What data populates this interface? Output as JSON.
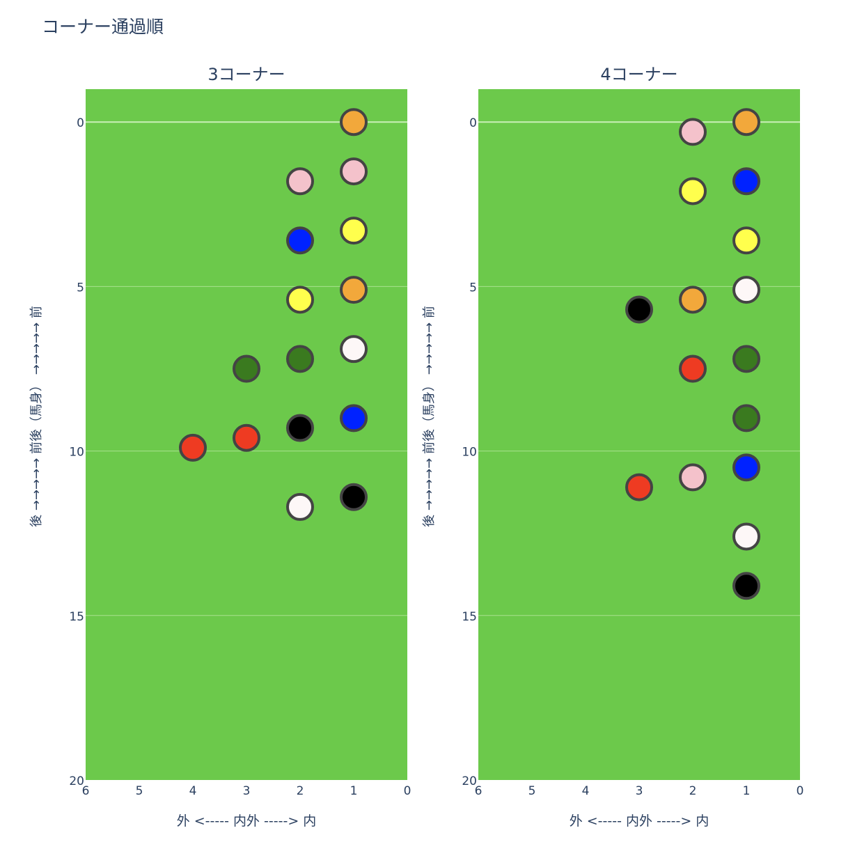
{
  "page_title": "コーナー通過順",
  "chart_data": [
    {
      "type": "scatter",
      "title": "3コーナー",
      "xlabel": "外 <-----  内外  -----> 内",
      "ylabel": "後  →→→→→  前後（馬身）  →→→→→  前",
      "xlim": [
        6,
        0
      ],
      "ylim": [
        20,
        -1
      ],
      "x_ticks": [
        6,
        5,
        4,
        3,
        2,
        1,
        0
      ],
      "y_ticks": [
        0,
        5,
        10,
        15,
        20
      ],
      "points": [
        {
          "x": 1,
          "y": 0.0,
          "color": "#F2A83B"
        },
        {
          "x": 1,
          "y": 1.5,
          "color": "#F4C2CB"
        },
        {
          "x": 2,
          "y": 1.8,
          "color": "#F4C2CB"
        },
        {
          "x": 1,
          "y": 3.3,
          "color": "#FFFF4D"
        },
        {
          "x": 2,
          "y": 3.6,
          "color": "#0022FF"
        },
        {
          "x": 1,
          "y": 5.1,
          "color": "#F2A83B"
        },
        {
          "x": 2,
          "y": 5.4,
          "color": "#FFFF4D"
        },
        {
          "x": 1,
          "y": 6.9,
          "color": "#FDF7F7"
        },
        {
          "x": 2,
          "y": 7.2,
          "color": "#3A7A1F"
        },
        {
          "x": 3,
          "y": 7.5,
          "color": "#3A7A1F"
        },
        {
          "x": 1,
          "y": 9.0,
          "color": "#0022FF"
        },
        {
          "x": 2,
          "y": 9.3,
          "color": "#000000"
        },
        {
          "x": 3,
          "y": 9.6,
          "color": "#EE3B22"
        },
        {
          "x": 4,
          "y": 9.9,
          "color": "#EE3B22"
        },
        {
          "x": 1,
          "y": 11.4,
          "color": "#000000"
        },
        {
          "x": 2,
          "y": 11.7,
          "color": "#FDF7F7"
        }
      ]
    },
    {
      "type": "scatter",
      "title": "4コーナー",
      "xlabel": "外 <-----  内外  -----> 内",
      "ylabel": "後  →→→→→  前後（馬身）  →→→→→  前",
      "xlim": [
        6,
        0
      ],
      "ylim": [
        20,
        -1
      ],
      "x_ticks": [
        6,
        5,
        4,
        3,
        2,
        1,
        0
      ],
      "y_ticks": [
        0,
        5,
        10,
        15,
        20
      ],
      "points": [
        {
          "x": 1,
          "y": 0.0,
          "color": "#F2A83B"
        },
        {
          "x": 2,
          "y": 0.3,
          "color": "#F4C2CB"
        },
        {
          "x": 1,
          "y": 1.8,
          "color": "#0022FF"
        },
        {
          "x": 2,
          "y": 2.1,
          "color": "#FFFF4D"
        },
        {
          "x": 1,
          "y": 3.6,
          "color": "#FFFF4D"
        },
        {
          "x": 1,
          "y": 5.1,
          "color": "#FDF7F7"
        },
        {
          "x": 2,
          "y": 5.4,
          "color": "#F2A83B"
        },
        {
          "x": 3,
          "y": 5.7,
          "color": "#000000"
        },
        {
          "x": 1,
          "y": 7.2,
          "color": "#3A7A1F"
        },
        {
          "x": 2,
          "y": 7.5,
          "color": "#EE3B22"
        },
        {
          "x": 1,
          "y": 9.0,
          "color": "#3A7A1F"
        },
        {
          "x": 1,
          "y": 10.5,
          "color": "#0022FF"
        },
        {
          "x": 2,
          "y": 10.8,
          "color": "#F4C2CB"
        },
        {
          "x": 3,
          "y": 11.1,
          "color": "#EE3B22"
        },
        {
          "x": 1,
          "y": 12.6,
          "color": "#FDF7F7"
        },
        {
          "x": 1,
          "y": 14.1,
          "color": "#000000"
        }
      ]
    }
  ],
  "colors": {
    "plot_background": "#6CC94B",
    "gridline": "#A8E28F",
    "zero_line": "#C9F0B8",
    "marker_outline": "#444444",
    "text": "#2a3f5f"
  }
}
